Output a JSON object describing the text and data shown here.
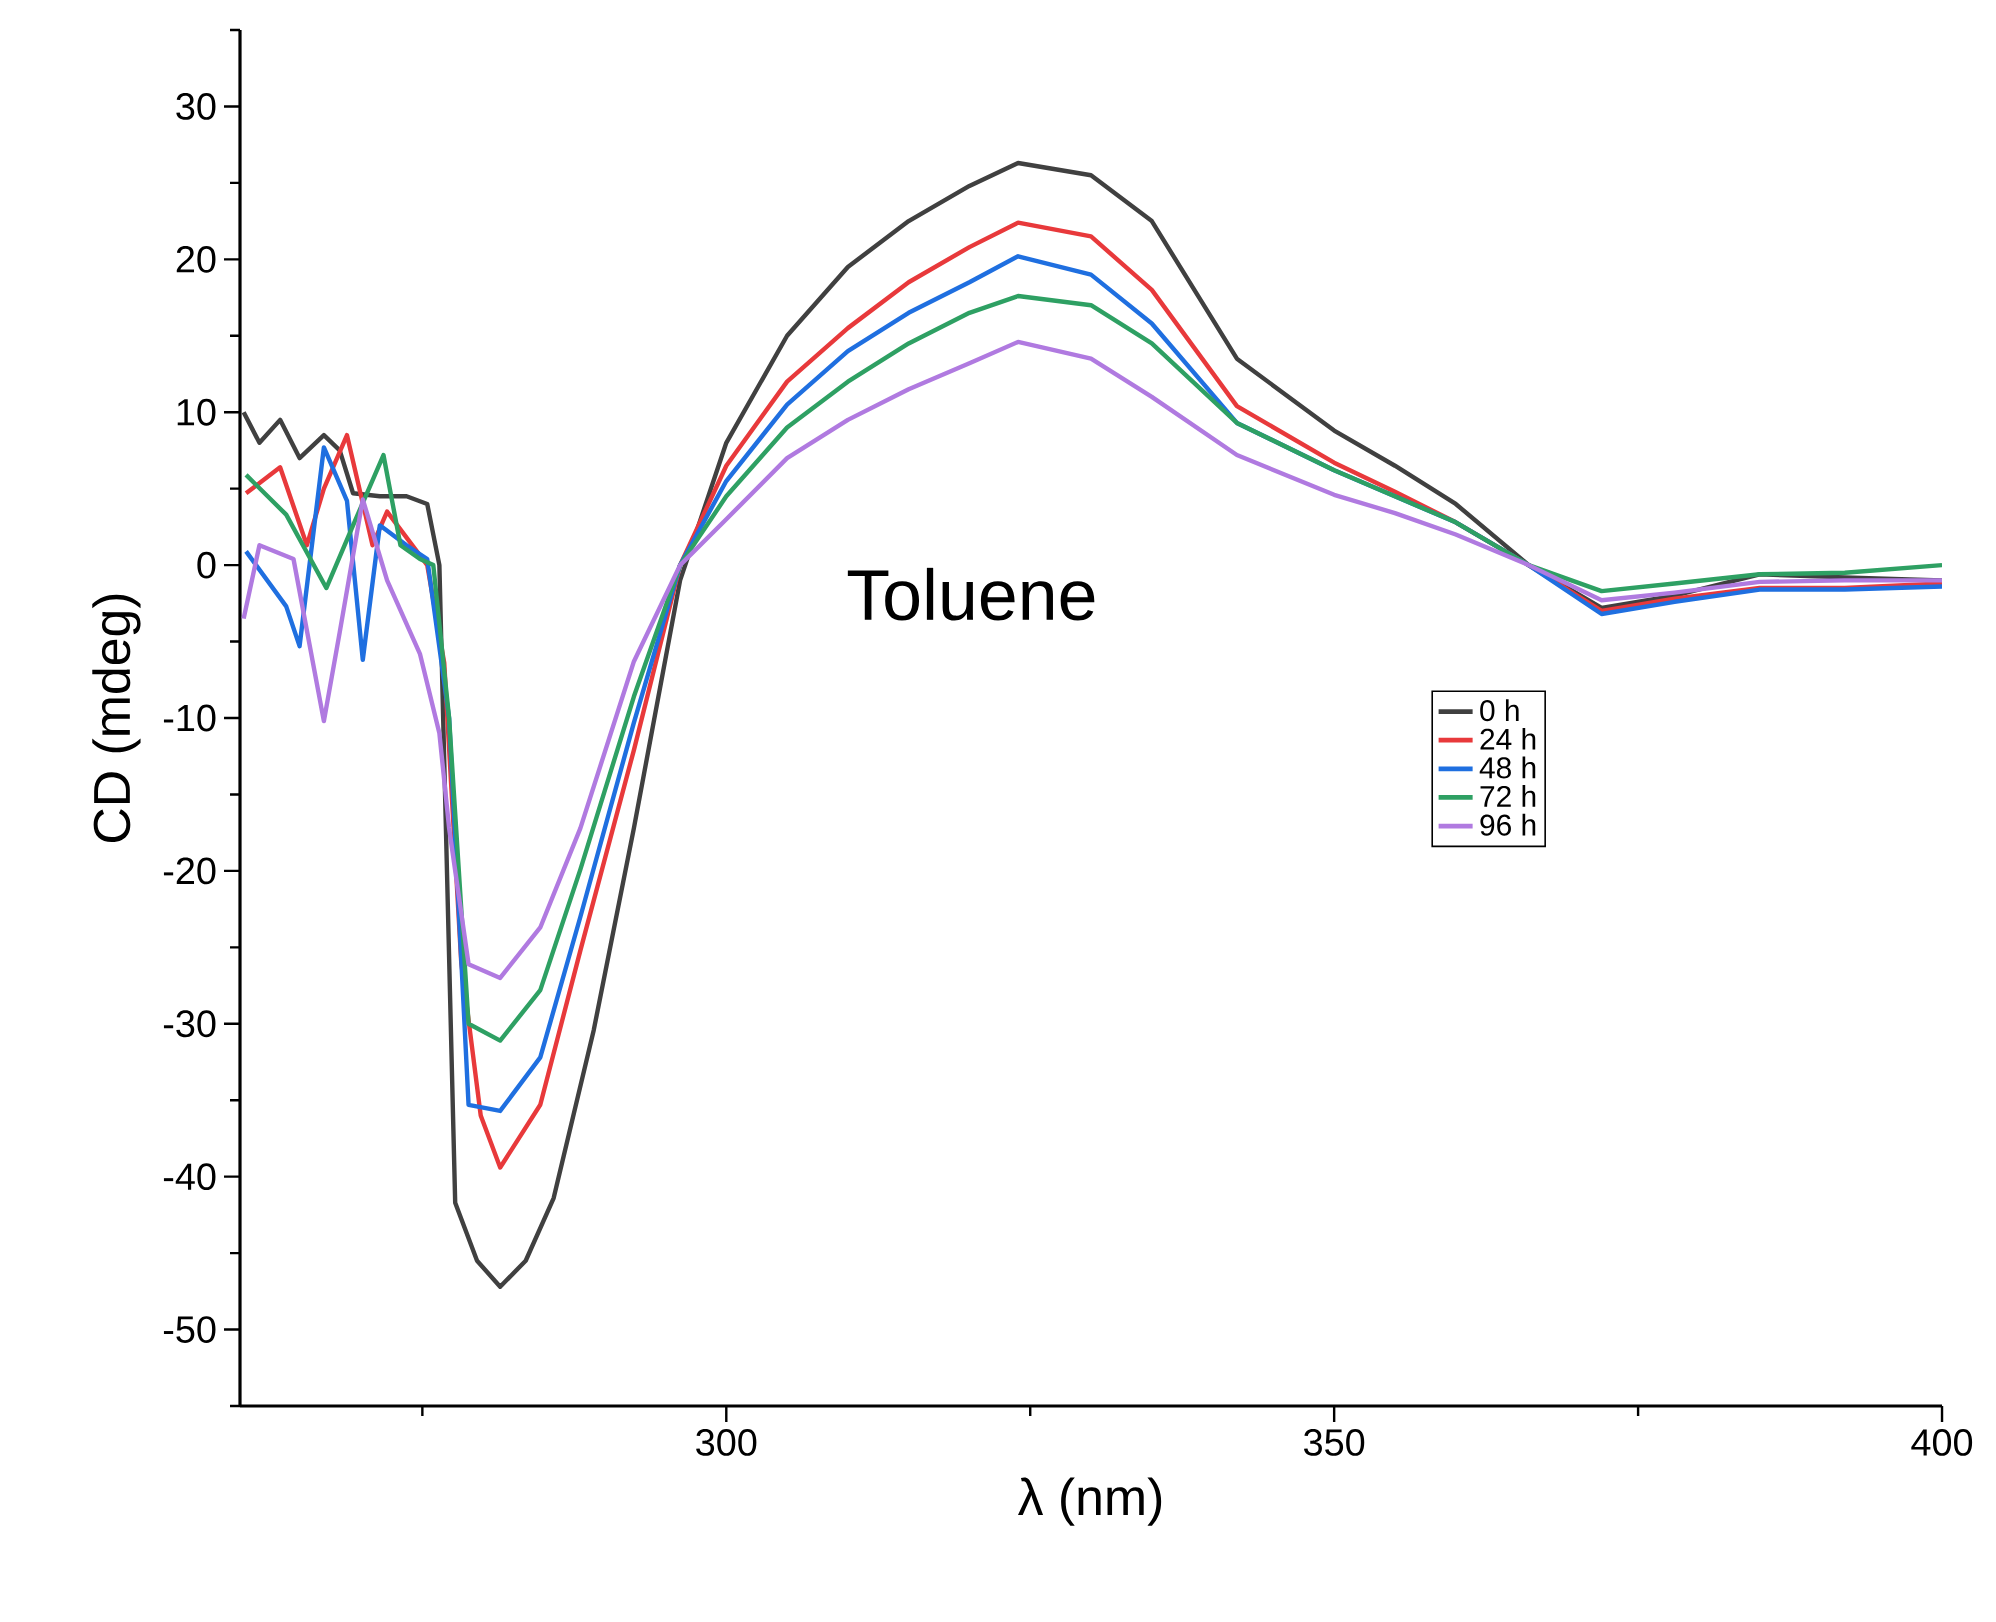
{
  "chart_data": {
    "type": "line",
    "xlabel": "λ (nm)",
    "ylabel": "CD (mdeg)",
    "annotations": [
      "Toluene"
    ],
    "xlim": [
      260,
      400
    ],
    "xticks": [
      300,
      350,
      400
    ],
    "ylim": [
      -55,
      35
    ],
    "yticks": [
      -50,
      -40,
      -30,
      -20,
      -10,
      0,
      10,
      20,
      30
    ],
    "grid": false,
    "legend": "right",
    "marker": "none",
    "line_style": "solid",
    "series": [
      {
        "name": "0 h",
        "color": "#404040",
        "x": [
          260.3,
          261.6,
          263.3,
          264.9,
          266.9,
          268.2,
          269.3,
          271.5,
          273.7,
          275.4,
          276.4,
          277.7,
          279.5,
          281.4,
          283.5,
          285.8,
          289.1,
          292.4,
          296.2,
          300,
          305,
          310,
          315,
          320,
          324,
          330,
          335,
          342,
          350,
          355,
          360,
          366,
          372,
          378,
          385,
          392,
          400
        ],
        "values": [
          10,
          8,
          9.5,
          7,
          8.5,
          7.5,
          4.7,
          4.5,
          4.5,
          4,
          0,
          -41.7,
          -45.5,
          -47.2,
          -45.5,
          -41.4,
          -30.4,
          -17.2,
          -1,
          8,
          15,
          19.5,
          22.5,
          24.8,
          26.3,
          25.5,
          22.5,
          13.5,
          8.8,
          6.5,
          4,
          0,
          -2.8,
          -2,
          -0.6,
          -0.8,
          -1
        ]
      },
      {
        "name": "24 h",
        "color": "#e8393b",
        "x": [
          260.5,
          263.3,
          265.5,
          266.9,
          268.8,
          270.9,
          272.1,
          273.7,
          275.4,
          276.8,
          278.2,
          279.8,
          281.4,
          284.7,
          288,
          292.4,
          296.2,
          300,
          305,
          310,
          315,
          320,
          324,
          330,
          335,
          342,
          350,
          355,
          360,
          366,
          372,
          378,
          385,
          392,
          400
        ],
        "values": [
          4.7,
          6.4,
          1.3,
          5,
          8.5,
          1.3,
          3.5,
          1.8,
          0,
          -6.4,
          -26,
          -36,
          -39.4,
          -35.3,
          -25.2,
          -12.1,
          0,
          6.5,
          12,
          15.5,
          18.5,
          20.8,
          22.4,
          21.5,
          18,
          10.4,
          6.7,
          4.8,
          2.8,
          0,
          -3,
          -2.2,
          -1.5,
          -1.5,
          -1.2
        ]
      },
      {
        "name": "48 h",
        "color": "#1f6fe0",
        "x": [
          260.5,
          263.8,
          264.9,
          266.9,
          268.8,
          270.1,
          271.5,
          273.7,
          275.4,
          277.2,
          278.8,
          281.4,
          284.7,
          288,
          292.4,
          296.2,
          300,
          305,
          310,
          315,
          320,
          324,
          330,
          335,
          342,
          350,
          355,
          360,
          366,
          372,
          378,
          385,
          392,
          400
        ],
        "values": [
          0.9,
          -2.7,
          -5.3,
          7.7,
          4.2,
          -6.2,
          2.6,
          1.3,
          0.4,
          -10,
          -35.3,
          -35.7,
          -32.2,
          -23,
          -10.3,
          0,
          5.5,
          10.5,
          14,
          16.5,
          18.5,
          20.2,
          19,
          15.8,
          9.3,
          6.2,
          4.5,
          2.8,
          0,
          -3.2,
          -2.4,
          -1.6,
          -1.6,
          -1.4
        ]
      },
      {
        "name": "72 h",
        "color": "#2ea063",
        "x": [
          260.5,
          263.8,
          267.1,
          269.3,
          271.8,
          273.2,
          274.8,
          275.9,
          277.2,
          278.8,
          281.4,
          284.7,
          288,
          292.4,
          296.2,
          300,
          305,
          310,
          315,
          320,
          324,
          330,
          335,
          342,
          350,
          355,
          360,
          366,
          372,
          378,
          385,
          392,
          400
        ],
        "values": [
          5.9,
          3.3,
          -1.5,
          2.6,
          7.2,
          1.3,
          0.4,
          0,
          -10,
          -30,
          -31.1,
          -27.8,
          -19.9,
          -8.6,
          0,
          4.5,
          9,
          12,
          14.5,
          16.5,
          17.6,
          17,
          14.5,
          9.3,
          6.2,
          4.5,
          2.8,
          0,
          -1.7,
          -1.2,
          -0.6,
          -0.5,
          0
        ]
      },
      {
        "name": "96 h",
        "color": "#b07ae0",
        "x": [
          260.3,
          261.6,
          264.4,
          266.9,
          268.2,
          270.1,
          272.1,
          274.8,
          276.4,
          277.2,
          278.8,
          281.4,
          284.7,
          288,
          292.4,
          296.2,
          300,
          305,
          310,
          315,
          320,
          324,
          330,
          335,
          342,
          350,
          355,
          360,
          366,
          372,
          378,
          385,
          392,
          400
        ],
        "values": [
          -3.5,
          1.3,
          0.4,
          -10.2,
          -4.4,
          4.3,
          -1,
          -5.8,
          -11,
          -17.2,
          -26.1,
          -27,
          -23.7,
          -17.2,
          -6.3,
          0,
          3,
          7,
          9.5,
          11.5,
          13.2,
          14.6,
          13.5,
          11,
          7.2,
          4.6,
          3.4,
          2,
          0,
          -2.3,
          -1.8,
          -1.1,
          -1,
          -1
        ]
      }
    ]
  }
}
